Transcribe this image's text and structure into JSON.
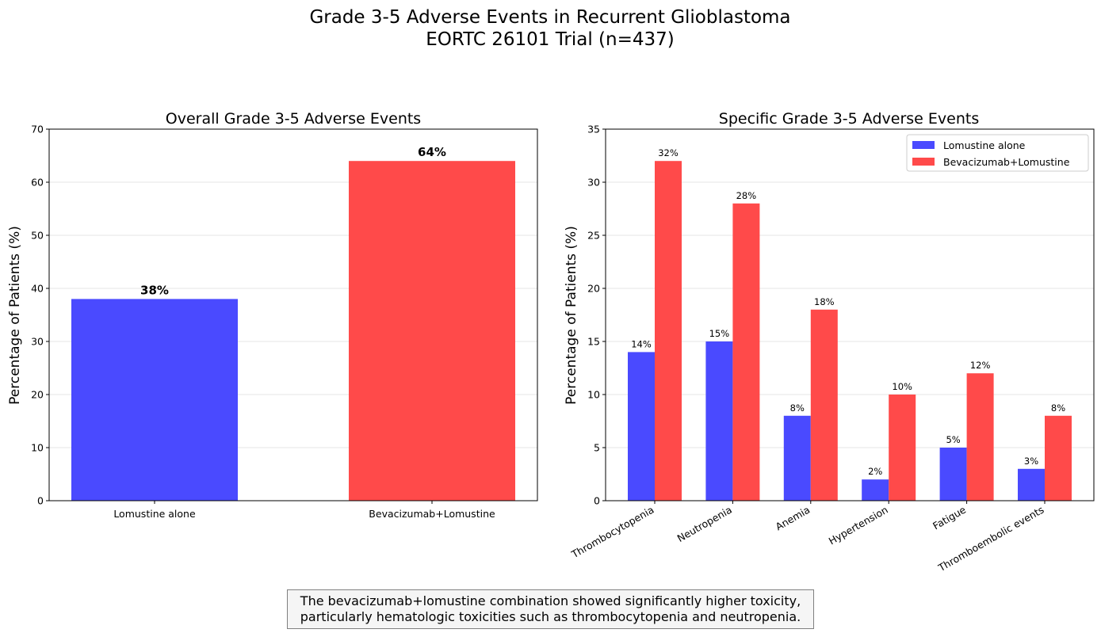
{
  "figure": {
    "title_line1": "Grade 3-5 Adverse Events in Recurrent Glioblastoma",
    "title_line2": "EORTC 26101 Trial (n=437)"
  },
  "caption": {
    "line1": "The bevacizumab+lomustine combination showed significantly higher toxicity,",
    "line2": "particularly hematologic toxicities such as thrombocytopenia and neutropenia."
  },
  "colors": {
    "lomustine": "#4a4aff",
    "combination": "#ff4a4a",
    "grid": "#e6e6e6",
    "axis": "#000000"
  },
  "chart_data": [
    {
      "type": "bar",
      "title": "Overall Grade 3-5 Adverse Events",
      "xlabel": "",
      "ylabel": "Percentage of Patients (%)",
      "categories": [
        "Lomustine alone",
        "Bevacizumab+Lomustine"
      ],
      "values": [
        38,
        64
      ],
      "data_labels": [
        "38%",
        "64%"
      ],
      "bar_colors": [
        "#4a4aff",
        "#ff4a4a"
      ],
      "ylim": [
        0,
        70
      ],
      "yticks": [
        0,
        10,
        20,
        30,
        40,
        50,
        60,
        70
      ],
      "grid": "y"
    },
    {
      "type": "bar",
      "title": "Specific Grade 3-5 Adverse Events",
      "xlabel": "",
      "ylabel": "Percentage of Patients (%)",
      "categories": [
        "Thrombocytopenia",
        "Neutropenia",
        "Anemia",
        "Hypertension",
        "Fatigue",
        "Thromboembolic events"
      ],
      "series": [
        {
          "name": "Lomustine alone",
          "color": "#4a4aff",
          "values": [
            14,
            15,
            8,
            2,
            5,
            3
          ],
          "data_labels": [
            "14%",
            "15%",
            "8%",
            "2%",
            "5%",
            "3%"
          ]
        },
        {
          "name": "Bevacizumab+Lomustine",
          "color": "#ff4a4a",
          "values": [
            32,
            28,
            18,
            10,
            12,
            8
          ],
          "data_labels": [
            "32%",
            "28%",
            "18%",
            "10%",
            "12%",
            "8%"
          ]
        }
      ],
      "ylim": [
        0,
        35
      ],
      "yticks": [
        0,
        5,
        10,
        15,
        20,
        25,
        30,
        35
      ],
      "grid": "y",
      "legend": "upper-right"
    }
  ]
}
